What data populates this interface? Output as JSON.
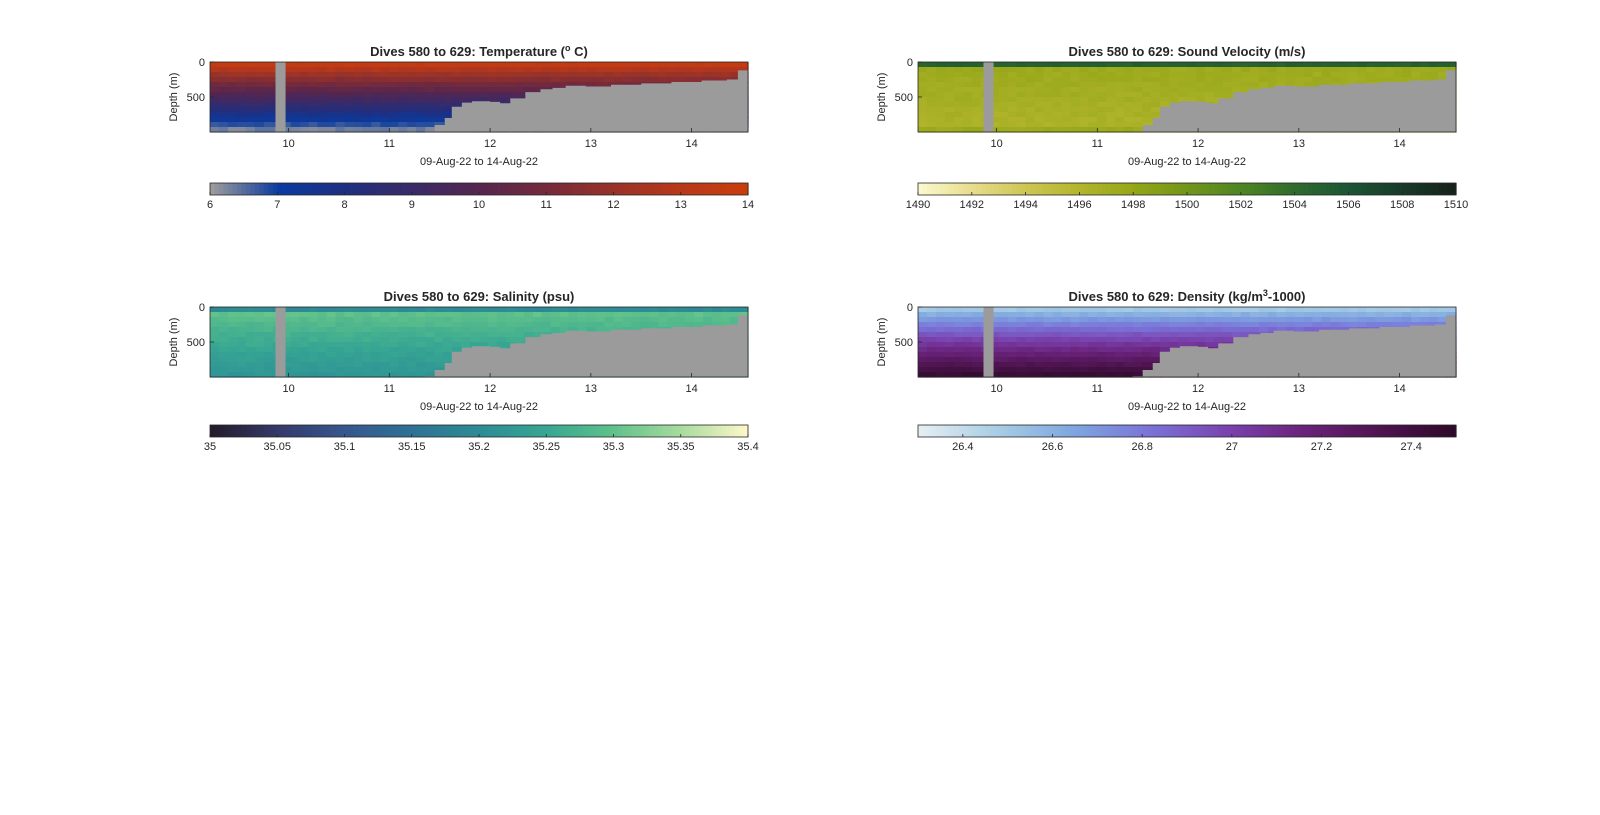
{
  "figure": {
    "background": "#ffffff",
    "mask_color": "#9b9b9b"
  },
  "chart_data": [
    {
      "type": "heatmap",
      "title_main": "Dives 580 to 629: Temperature (",
      "title_sup": "o",
      "title_end": " C)",
      "xlabel": "09-Aug-22 to 14-Aug-22",
      "ylabel": "Depth (m)",
      "xlim": [
        9.22,
        14.56
      ],
      "ylim": [
        1000,
        0
      ],
      "x_ticks": [
        "10",
        "11",
        "12",
        "13",
        "14"
      ],
      "x_tick_values": [
        10,
        11,
        12,
        13,
        14
      ],
      "y_ticks": [
        "0",
        "500"
      ],
      "y_tick_values": [
        0,
        500
      ],
      "gap_days": [
        9.87,
        9.97
      ],
      "seabed_profile": [
        [
          11.35,
          990
        ],
        [
          11.45,
          900
        ],
        [
          11.55,
          800
        ],
        [
          11.62,
          640
        ],
        [
          11.72,
          580
        ],
        [
          11.82,
          560
        ],
        [
          12.0,
          570
        ],
        [
          12.1,
          590
        ],
        [
          12.2,
          520
        ],
        [
          12.35,
          430
        ],
        [
          12.5,
          390
        ],
        [
          12.62,
          370
        ],
        [
          12.75,
          340
        ],
        [
          12.95,
          350
        ],
        [
          13.2,
          325
        ],
        [
          13.5,
          305
        ],
        [
          13.8,
          285
        ],
        [
          14.1,
          265
        ],
        [
          14.35,
          250
        ],
        [
          14.46,
          120
        ],
        [
          14.56,
          80
        ]
      ],
      "colorbar": {
        "min": 6,
        "max": 14,
        "ticks": [
          "6",
          "7",
          "8",
          "9",
          "10",
          "11",
          "12",
          "13",
          "14"
        ],
        "tick_values": [
          6,
          7,
          8,
          9,
          10,
          11,
          12,
          13,
          14
        ],
        "colors": [
          "#9b9b9b",
          "#0a3ba0",
          "#1f2f80",
          "#3a2a68",
          "#55264f",
          "#752a3b",
          "#983229",
          "#b8381a",
          "#c93d0d"
        ]
      },
      "field": {
        "surface_value": 13.6,
        "deep_value": 6.3
      }
    },
    {
      "type": "heatmap",
      "title_main": "Dives 580 to 629: Sound Velocity (m/s)",
      "title_sup": "",
      "title_end": "",
      "xlabel": "09-Aug-22 to 14-Aug-22",
      "ylabel": "Depth (m)",
      "xlim": [
        9.22,
        14.56
      ],
      "ylim": [
        1000,
        0
      ],
      "x_ticks": [
        "10",
        "11",
        "12",
        "13",
        "14"
      ],
      "x_tick_values": [
        10,
        11,
        12,
        13,
        14
      ],
      "y_ticks": [
        "0",
        "500"
      ],
      "y_tick_values": [
        0,
        500
      ],
      "gap_days": [
        9.87,
        9.97
      ],
      "seabed_profile": [
        [
          11.35,
          990
        ],
        [
          11.45,
          900
        ],
        [
          11.55,
          800
        ],
        [
          11.62,
          640
        ],
        [
          11.72,
          580
        ],
        [
          11.82,
          560
        ],
        [
          12.0,
          570
        ],
        [
          12.1,
          590
        ],
        [
          12.2,
          520
        ],
        [
          12.35,
          430
        ],
        [
          12.5,
          390
        ],
        [
          12.62,
          370
        ],
        [
          12.75,
          340
        ],
        [
          12.95,
          350
        ],
        [
          13.2,
          325
        ],
        [
          13.5,
          305
        ],
        [
          13.8,
          285
        ],
        [
          14.1,
          265
        ],
        [
          14.35,
          250
        ],
        [
          14.46,
          120
        ],
        [
          14.56,
          80
        ]
      ],
      "colorbar": {
        "min": 1490,
        "max": 1510,
        "ticks": [
          "1490",
          "1492",
          "1494",
          "1496",
          "1498",
          "1500",
          "1502",
          "1504",
          "1506",
          "1508",
          "1510"
        ],
        "tick_values": [
          1490,
          1492,
          1494,
          1496,
          1498,
          1500,
          1502,
          1504,
          1506,
          1508,
          1510
        ],
        "colors": [
          "#fbf8cc",
          "#e6dc8a",
          "#cdc551",
          "#b2b52c",
          "#94a617",
          "#72961a",
          "#4f8522",
          "#2f6c2c",
          "#1c5634",
          "#183b2a",
          "#16231b"
        ]
      },
      "field": {
        "surface_value": 1505,
        "deep_value": 1497
      }
    },
    {
      "type": "heatmap",
      "title_main": "Dives 580 to 629: Salinity (psu)",
      "title_sup": "",
      "title_end": "",
      "xlabel": "09-Aug-22 to 14-Aug-22",
      "ylabel": "Depth (m)",
      "xlim": [
        9.22,
        14.56
      ],
      "ylim": [
        1000,
        0
      ],
      "x_ticks": [
        "10",
        "11",
        "12",
        "13",
        "14"
      ],
      "x_tick_values": [
        10,
        11,
        12,
        13,
        14
      ],
      "y_ticks": [
        "0",
        "500"
      ],
      "y_tick_values": [
        0,
        500
      ],
      "gap_days": [
        9.87,
        9.97
      ],
      "seabed_profile": [
        [
          11.35,
          990
        ],
        [
          11.45,
          900
        ],
        [
          11.55,
          800
        ],
        [
          11.62,
          640
        ],
        [
          11.72,
          580
        ],
        [
          11.82,
          560
        ],
        [
          12.0,
          570
        ],
        [
          12.1,
          590
        ],
        [
          12.2,
          520
        ],
        [
          12.35,
          430
        ],
        [
          12.5,
          390
        ],
        [
          12.62,
          370
        ],
        [
          12.75,
          340
        ],
        [
          12.95,
          350
        ],
        [
          13.2,
          325
        ],
        [
          13.5,
          305
        ],
        [
          13.8,
          285
        ],
        [
          14.1,
          265
        ],
        [
          14.35,
          250
        ],
        [
          14.46,
          120
        ],
        [
          14.56,
          80
        ]
      ],
      "colorbar": {
        "min": 35,
        "max": 35.4,
        "ticks": [
          "35",
          "35.05",
          "35.1",
          "35.15",
          "35.2",
          "35.25",
          "35.3",
          "35.35",
          "35.4"
        ],
        "tick_values": [
          35,
          35.05,
          35.1,
          35.15,
          35.2,
          35.25,
          35.3,
          35.35,
          35.4
        ],
        "colors": [
          "#231c2b",
          "#353a6b",
          "#36578f",
          "#2e7294",
          "#2d8c95",
          "#36a693",
          "#5fc18a",
          "#a6da9d",
          "#fbf7c8"
        ]
      },
      "field": {
        "surface_value": 35.2,
        "deep_value": 35.22,
        "mid_value": 35.31
      }
    },
    {
      "type": "heatmap",
      "title_main": "Dives 580 to 629: Density (kg/m",
      "title_sup": "3",
      "title_end": "-1000)",
      "xlabel": "09-Aug-22 to 14-Aug-22",
      "ylabel": "Depth (m)",
      "xlim": [
        9.22,
        14.56
      ],
      "ylim": [
        1000,
        0
      ],
      "x_ticks": [
        "10",
        "11",
        "12",
        "13",
        "14"
      ],
      "x_tick_values": [
        10,
        11,
        12,
        13,
        14
      ],
      "y_ticks": [
        "0",
        "500"
      ],
      "y_tick_values": [
        0,
        500
      ],
      "gap_days": [
        9.87,
        9.97
      ],
      "seabed_profile": [
        [
          11.35,
          990
        ],
        [
          11.45,
          900
        ],
        [
          11.55,
          800
        ],
        [
          11.62,
          640
        ],
        [
          11.72,
          580
        ],
        [
          11.82,
          560
        ],
        [
          12.0,
          570
        ],
        [
          12.1,
          590
        ],
        [
          12.2,
          520
        ],
        [
          12.35,
          430
        ],
        [
          12.5,
          390
        ],
        [
          12.62,
          370
        ],
        [
          12.75,
          340
        ],
        [
          12.95,
          350
        ],
        [
          13.2,
          325
        ],
        [
          13.5,
          305
        ],
        [
          13.8,
          285
        ],
        [
          14.1,
          265
        ],
        [
          14.35,
          250
        ],
        [
          14.46,
          120
        ],
        [
          14.56,
          80
        ]
      ],
      "colorbar": {
        "min": 26.3,
        "max": 27.5,
        "ticks": [
          "26.4",
          "26.6",
          "26.8",
          "27",
          "27.2",
          "27.4"
        ],
        "tick_values": [
          26.4,
          26.6,
          26.8,
          27,
          27.2,
          27.4
        ],
        "colors": [
          "#e4eef2",
          "#a9cde4",
          "#7ea7e0",
          "#7a74d8",
          "#7a44b0",
          "#6a237c",
          "#4f1450",
          "#2e0a2a"
        ]
      },
      "field": {
        "surface_value": 26.5,
        "deep_value": 27.45
      }
    }
  ]
}
